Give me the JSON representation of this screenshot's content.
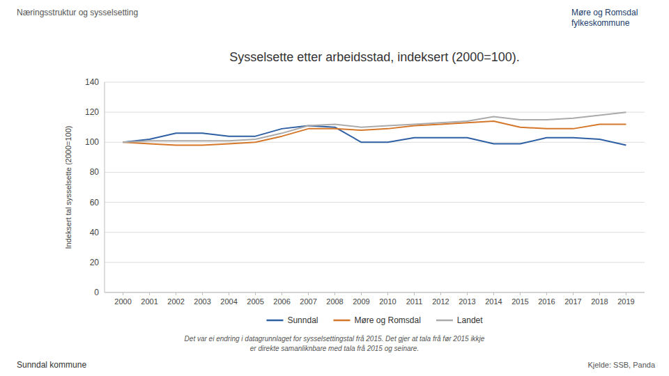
{
  "chart_data": {
    "type": "line",
    "title": "Sysselsette etter arbeidsstad, indeksert (2000=100).",
    "y_label": "Indeksert tal sysselsette (2000=100)",
    "x": [
      2000,
      2001,
      2002,
      2003,
      2004,
      2005,
      2006,
      2007,
      2008,
      2009,
      2010,
      2011,
      2012,
      2013,
      2014,
      2015,
      2016,
      2017,
      2018,
      2019
    ],
    "series": [
      {
        "name": "Sunndal",
        "color": "#2E5FA3",
        "values": [
          100,
          102,
          106,
          106,
          104,
          104,
          109,
          111,
          110,
          100,
          100,
          103,
          103,
          103,
          99,
          99,
          103,
          103,
          102,
          98
        ]
      },
      {
        "name": "Møre og Romsdal",
        "color": "#D4772A",
        "values": [
          100,
          99,
          98,
          98,
          99,
          100,
          104,
          109,
          109,
          108,
          109,
          111,
          112,
          113,
          114,
          110,
          109,
          109,
          112,
          112
        ]
      },
      {
        "name": "Landet",
        "color": "#AAAAAA",
        "values": [
          100,
          101,
          101,
          101,
          101,
          102,
          106,
          111,
          112,
          110,
          111,
          112,
          113,
          114,
          117,
          115,
          115,
          116,
          118,
          120
        ]
      }
    ],
    "xlim": [
      1999.3,
      2019.7
    ],
    "xticks": [
      2000,
      2001,
      2002,
      2003,
      2004,
      2005,
      2006,
      2007,
      2008,
      2009,
      2010,
      2011,
      2012,
      2013,
      2014,
      2015,
      2016,
      2017,
      2018,
      2019
    ],
    "ylim": [
      0,
      140
    ],
    "yticks": [
      0,
      20,
      40,
      60,
      80,
      100,
      120,
      140
    ],
    "grid": true,
    "legend": "bottom",
    "annotations": [
      "Næringsstruktur og sysselsetting",
      "Det var ei endring i datagrunnlaget for sysselsettingstal frå 2015. Det gjer at tala frå før 2015 ikkje\ner direkte samanliknbare med tala frå 2015 og seinare.",
      "Kjelde: SSB, Panda",
      "Sunndal kommune",
      "Møre og Romsdal\nfylkeskommune"
    ]
  }
}
